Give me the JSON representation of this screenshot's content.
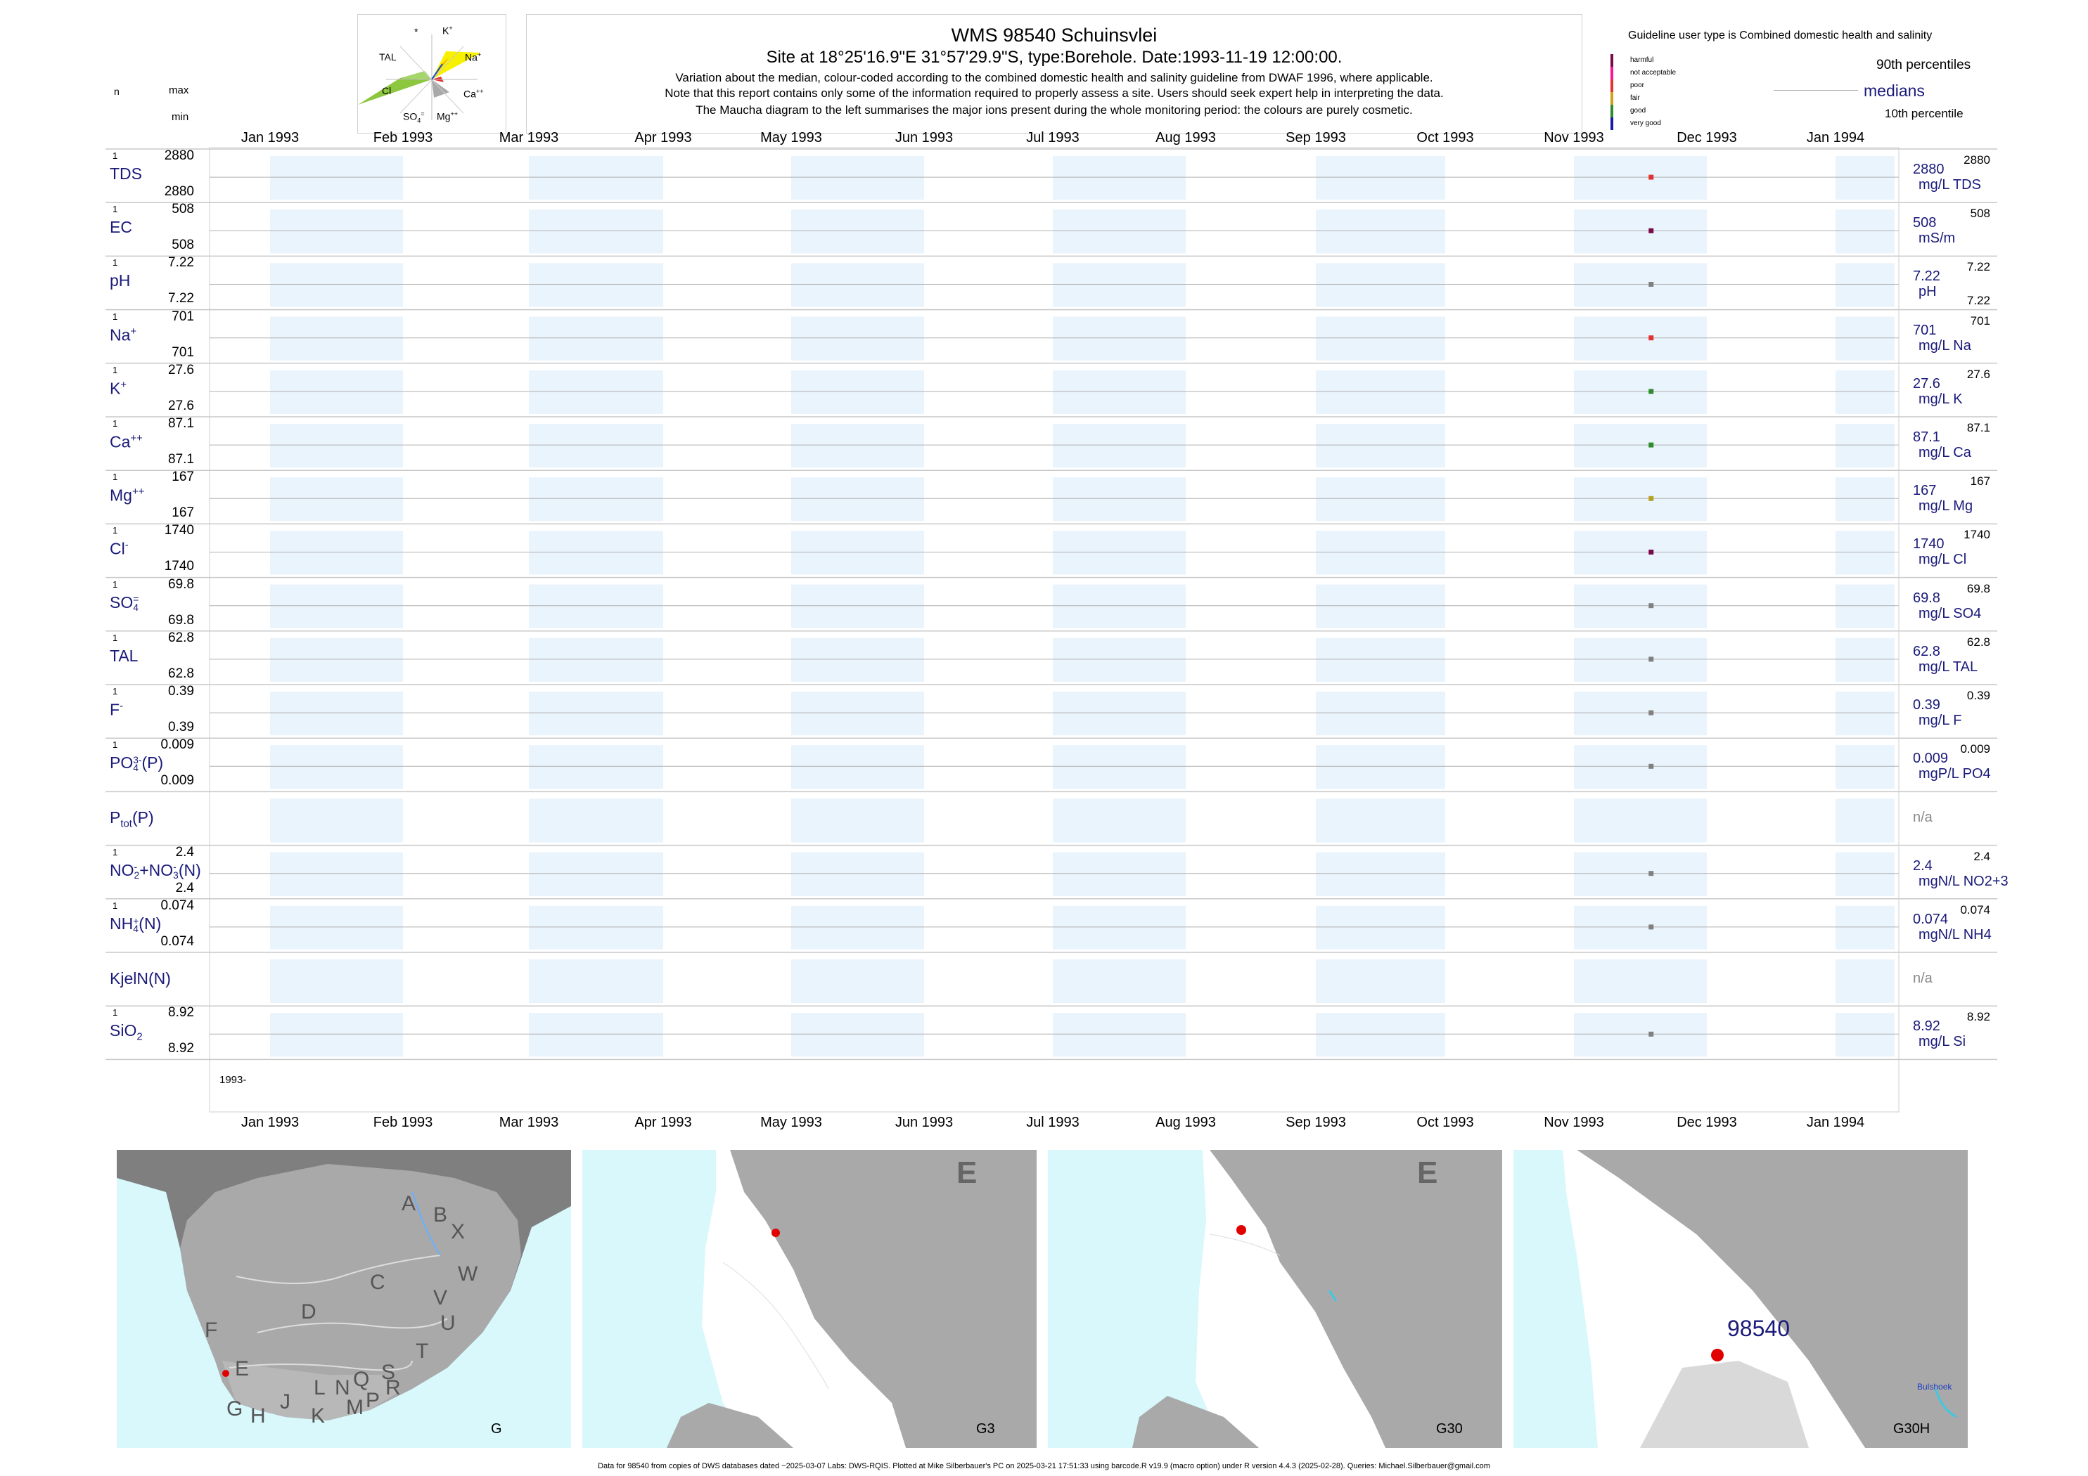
{
  "header": {
    "title": "WMS 98540  Schuinsvlei",
    "site": "Site at 18°25'16.9\"E 31°57'29.9\"S, type:Borehole. Date:1993-11-19 12:00:00.",
    "note1": "Variation about the median,  colour-coded according to the combined domestic health and salinity guideline from DWAF 1996, where applicable.",
    "note2": "Note that this report contains only some of the information required to properly assess a site. Users should seek expert help in interpreting the data.",
    "note3": "The Maucha diagram to the left summarises the major ions present during the whole monitoring period: the colours are purely cosmetic."
  },
  "maucha": {
    "labels": {
      "star": "*",
      "k": "K",
      "na": "Na",
      "ca": "Ca",
      "mg": "Mg",
      "so4": "SO",
      "cl": "Cl",
      "tal": "TAL"
    }
  },
  "left_header": {
    "n": "n",
    "max": "max",
    "min": "min"
  },
  "legend": {
    "title": "Guideline user type is Combined domestic health and salinity",
    "items": [
      {
        "label": "harmful",
        "color": "#7a0a4a"
      },
      {
        "label": "not acceptable",
        "color": "#ff1493"
      },
      {
        "label": "poor",
        "color": "#e53030"
      },
      {
        "label": "fair",
        "color": "#d1a020"
      },
      {
        "label": "good",
        "color": "#2e8b2e"
      },
      {
        "label": "very good",
        "color": "#1a1aaa"
      }
    ],
    "p90": "90th percentiles",
    "medians": "medians",
    "p10": "10th percentile"
  },
  "months": [
    "Jan 1993",
    "Feb 1993",
    "Mar 1993",
    "Apr 1993",
    "May 1993",
    "Jun 1993",
    "Jul 1993",
    "Aug 1993",
    "Sep 1993",
    "Oct 1993",
    "Nov 1993",
    "Dec 1993",
    "Jan 1994"
  ],
  "year_label": "1993-",
  "chart_data": {
    "type": "scatter",
    "x_range": [
      "1993-01-01",
      "1994-01-01"
    ],
    "sample_date": "1993-11-19",
    "rows": [
      {
        "name": "TDS",
        "n": "1",
        "max": "2880",
        "min": "2880",
        "value": "2880",
        "unit": "mg/L TDS",
        "right_max": "2880",
        "color": "#e53030"
      },
      {
        "name": "EC",
        "n": "1",
        "max": "508",
        "min": "508",
        "value": "508",
        "unit": "mS/m",
        "right_max": "508",
        "color": "#7a0a4a"
      },
      {
        "name": "pH",
        "n": "1",
        "max": "7.22",
        "min": "7.22",
        "value": "7.22",
        "unit": "pH",
        "right_max": "7.22",
        "right_min": "7.22",
        "color": "#808080"
      },
      {
        "name": "Na",
        "sup": "+",
        "n": "1",
        "max": "701",
        "min": "701",
        "value": "701",
        "unit": "mg/L Na",
        "right_max": "701",
        "color": "#e53030"
      },
      {
        "name": "K",
        "sup": "+",
        "n": "1",
        "max": "27.6",
        "min": "27.6",
        "value": "27.6",
        "unit": "mg/L K",
        "right_max": "27.6",
        "color": "#2e8b2e"
      },
      {
        "name": "Ca",
        "sup": "++",
        "n": "1",
        "max": "87.1",
        "min": "87.1",
        "value": "87.1",
        "unit": "mg/L Ca",
        "right_max": "87.1",
        "color": "#2e8b2e"
      },
      {
        "name": "Mg",
        "sup": "++",
        "n": "1",
        "max": "167",
        "min": "167",
        "value": "167",
        "unit": "mg/L Mg",
        "right_max": "167",
        "color": "#b8a020"
      },
      {
        "name": "Cl",
        "sup": "-",
        "n": "1",
        "max": "1740",
        "min": "1740",
        "value": "1740",
        "unit": "mg/L Cl",
        "right_max": "1740",
        "color": "#7a0a4a"
      },
      {
        "name": "SO",
        "sub": "4",
        "sup": "=",
        "n": "1",
        "max": "69.8",
        "min": "69.8",
        "value": "69.8",
        "unit": "mg/L SO4",
        "right_max": "69.8",
        "color": "#808080"
      },
      {
        "name": "TAL",
        "n": "1",
        "max": "62.8",
        "min": "62.8",
        "value": "62.8",
        "unit": "mg/L TAL",
        "right_max": "62.8",
        "color": "#808080"
      },
      {
        "name": "F",
        "sup": "-",
        "n": "1",
        "max": "0.39",
        "min": "0.39",
        "value": "0.39",
        "unit": "mg/L F",
        "right_max": "0.39",
        "color": "#808080"
      },
      {
        "name": "PO",
        "sub": "4",
        "sup": "3-",
        "suffix": "(P)",
        "n": "1",
        "max": "0.009",
        "min": "0.009",
        "value": "0.009",
        "unit": "mgP/L PO4",
        "right_max": "0.009",
        "color": "#808080"
      },
      {
        "name": "P",
        "sub": "tot",
        "suffix": "(P)",
        "na": "n/a"
      },
      {
        "name": "NO",
        "sub": "2",
        "sup": "-",
        "suffix": "+NO",
        "sub2": "3",
        "sup2": "-",
        "suffix2": "(N)",
        "n": "1",
        "max": "2.4",
        "min": "2.4",
        "value": "2.4",
        "unit": "mgN/L NO2+3",
        "right_max": "2.4",
        "color": "#808080"
      },
      {
        "name": "NH",
        "sub": "4",
        "sup": "+",
        "suffix": "(N)",
        "n": "1",
        "max": "0.074",
        "min": "0.074",
        "value": "0.074",
        "unit": "mgN/L NH4",
        "right_max": "0.074",
        "color": "#808080"
      },
      {
        "name": "KjelN(N)",
        "na": "n/a"
      },
      {
        "name": "SiO",
        "sub": "2",
        "n": "1",
        "max": "8.92",
        "min": "8.92",
        "value": "8.92",
        "unit": "mg/L Si",
        "right_max": "8.92",
        "color": "#808080"
      }
    ]
  },
  "maps": {
    "panel1_label": "G",
    "panel1_regions": [
      "A",
      "B",
      "X",
      "W",
      "C",
      "V",
      "U",
      "D",
      "T",
      "F",
      "E",
      "G",
      "H",
      "J",
      "K",
      "L",
      "M",
      "N",
      "P",
      "Q",
      "R",
      "S"
    ],
    "panel2_label": "G3",
    "panel2_region": "E",
    "panel3_label": "G30",
    "panel3_region": "E",
    "panel4_label": "G30H",
    "panel4_site": "98540",
    "panel4_place": "Bulshoek"
  },
  "footer": "Data for 98540 from copies of DWS databases dated ~2025-03-07 Labs: DWS-RQIS. Plotted at Mike Silberbauer's PC on 2025-03-21 17:51:33 using barcode.R v19.9 (macro option) under R version 4.4.3 (2025-02-28). Queries: Michael.Silberbauer@gmail.com"
}
